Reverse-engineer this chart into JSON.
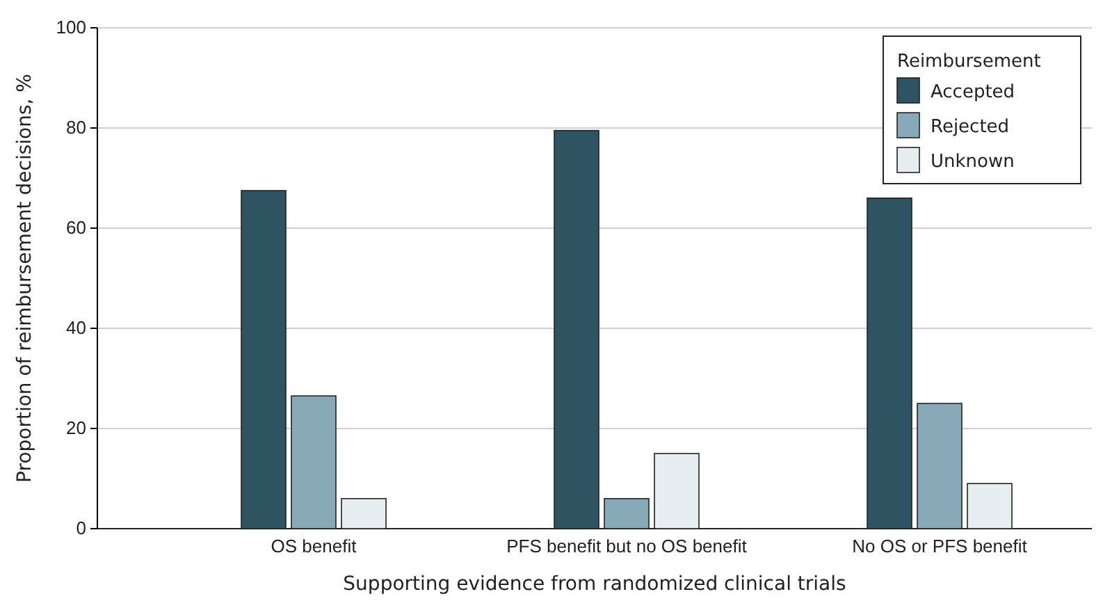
{
  "chart_data": {
    "type": "bar",
    "xlabel": "Supporting evidence from randomized clinical trials",
    "ylabel": "Proportion of reimbursement decisions, %",
    "categories": [
      "OS benefit",
      "PFS benefit but no OS benefit",
      "No OS or PFS benefit"
    ],
    "series": [
      {
        "name": "Accepted",
        "color": "#2e5361",
        "values": [
          67.5,
          79.5,
          66
        ]
      },
      {
        "name": "Rejected",
        "color": "#87a9b8",
        "values": [
          26.5,
          6,
          25
        ]
      },
      {
        "name": "Unknown",
        "color": "#e6eef1",
        "values": [
          6,
          15,
          9
        ]
      }
    ],
    "legend_title": "Reimbursement",
    "legend": "top right",
    "ylim": [
      0,
      100
    ],
    "yticks": [
      0,
      20,
      40,
      60,
      80,
      100
    ],
    "grid": "y"
  }
}
